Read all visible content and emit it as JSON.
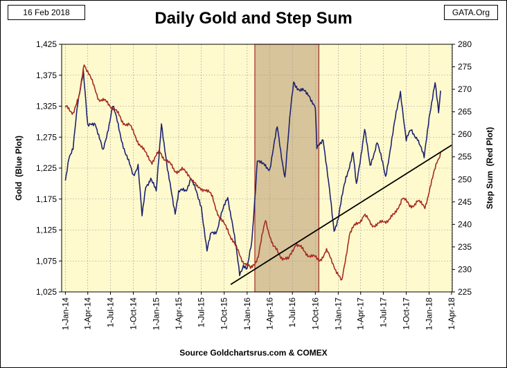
{
  "header": {
    "date": "16 Feb 2018",
    "brand": "GATA.Org"
  },
  "footer": {
    "source": "Source Goldchartsrus.com & COMEX"
  },
  "colors": {
    "plot_background": "#FFFACD",
    "highlight": "#D8C49A",
    "highlight_border": "#9E2A2A",
    "gold_line": "#1B2270",
    "step_line": "#A52A20",
    "trend_line": "#000000",
    "grid": "#999999"
  },
  "chart_data": {
    "type": "line",
    "title": "Daily Gold and Step Sum",
    "ylabel": "Gold  (Blue Plot)",
    "y2label": "Step Sum  (Red Plot)",
    "xlabel": "",
    "ylim": [
      1025,
      1425
    ],
    "y2lim": [
      225,
      280
    ],
    "yticks": [
      "1,025",
      "1,075",
      "1,125",
      "1,175",
      "1,225",
      "1,275",
      "1,325",
      "1,375",
      "1,425"
    ],
    "y2ticks": [
      "225",
      "230",
      "235",
      "240",
      "245",
      "250",
      "255",
      "260",
      "265",
      "270",
      "275",
      "280"
    ],
    "xticks": [
      "1-Jan-14",
      "1-Apr-14",
      "1-Jul-14",
      "1-Oct-14",
      "1-Jan-15",
      "1-Apr-15",
      "1-Jul-15",
      "1-Oct-15",
      "1-Jan-16",
      "1-Apr-16",
      "1-Jul-16",
      "1-Oct-16",
      "1-Jan-17",
      "1-Apr-17",
      "1-Jul-17",
      "1-Oct-17",
      "1-Jan-18",
      "1-Apr-18"
    ],
    "grid": true,
    "highlight_range": [
      "2016-02-01",
      "2016-10-15"
    ],
    "series": [
      {
        "name": "Gold",
        "axis": "left",
        "x": [
          "2014-01-01",
          "2014-01-15",
          "2014-02-01",
          "2014-02-20",
          "2014-03-14",
          "2014-04-01",
          "2014-05-01",
          "2014-06-01",
          "2014-07-10",
          "2014-08-01",
          "2014-09-01",
          "2014-10-01",
          "2014-10-20",
          "2014-11-05",
          "2014-11-20",
          "2014-12-10",
          "2015-01-01",
          "2015-01-22",
          "2015-02-15",
          "2015-03-18",
          "2015-04-01",
          "2015-05-01",
          "2015-05-20",
          "2015-06-15",
          "2015-07-01",
          "2015-07-24",
          "2015-08-10",
          "2015-09-01",
          "2015-10-15",
          "2015-11-01",
          "2015-12-02",
          "2015-12-17",
          "2016-01-01",
          "2016-01-20",
          "2016-02-11",
          "2016-03-01",
          "2016-04-01",
          "2016-05-01",
          "2016-06-01",
          "2016-06-24",
          "2016-07-06",
          "2016-08-01",
          "2016-09-06",
          "2016-10-01",
          "2016-10-07",
          "2016-11-01",
          "2016-12-15",
          "2017-01-01",
          "2017-02-01",
          "2017-03-01",
          "2017-03-15",
          "2017-04-17",
          "2017-05-09",
          "2017-06-06",
          "2017-07-10",
          "2017-08-01",
          "2017-09-08",
          "2017-10-01",
          "2017-10-20",
          "2017-11-15",
          "2017-12-12",
          "2018-01-01",
          "2018-01-25",
          "2018-02-08",
          "2018-02-16"
        ],
        "y": [
          1205,
          1245,
          1255,
          1330,
          1385,
          1290,
          1300,
          1250,
          1325,
          1295,
          1245,
          1215,
          1230,
          1145,
          1195,
          1210,
          1185,
          1300,
          1220,
          1155,
          1185,
          1190,
          1210,
          1180,
          1165,
          1090,
          1120,
          1125,
          1180,
          1140,
          1055,
          1070,
          1060,
          1105,
          1240,
          1230,
          1225,
          1290,
          1210,
          1320,
          1365,
          1350,
          1345,
          1320,
          1255,
          1275,
          1125,
          1145,
          1210,
          1250,
          1195,
          1290,
          1225,
          1270,
          1210,
          1265,
          1350,
          1270,
          1285,
          1275,
          1240,
          1310,
          1360,
          1315,
          1350
        ]
      },
      {
        "name": "Step Sum",
        "axis": "right",
        "x": [
          "2014-01-01",
          "2014-02-01",
          "2014-02-25",
          "2014-03-17",
          "2014-04-15",
          "2014-05-15",
          "2014-06-15",
          "2014-07-15",
          "2014-08-15",
          "2014-09-15",
          "2014-10-15",
          "2014-11-15",
          "2014-12-15",
          "2015-01-15",
          "2015-02-15",
          "2015-03-15",
          "2015-04-15",
          "2015-05-15",
          "2015-06-15",
          "2015-07-15",
          "2015-08-15",
          "2015-09-15",
          "2015-10-15",
          "2015-11-15",
          "2015-12-15",
          "2016-01-15",
          "2016-02-15",
          "2016-03-15",
          "2016-04-15",
          "2016-05-15",
          "2016-06-15",
          "2016-07-15",
          "2016-08-15",
          "2016-09-15",
          "2016-10-15",
          "2016-11-15",
          "2016-12-15",
          "2017-01-15",
          "2017-02-15",
          "2017-03-15",
          "2017-04-15",
          "2017-05-15",
          "2017-06-15",
          "2017-07-15",
          "2017-08-15",
          "2017-09-15",
          "2017-10-15",
          "2017-11-15",
          "2017-12-15",
          "2018-01-15",
          "2018-02-01",
          "2018-02-16"
        ],
        "y": [
          266,
          265,
          268,
          276,
          272,
          268,
          267,
          266,
          263,
          262,
          259,
          256,
          254,
          256,
          254,
          252,
          252,
          251,
          248,
          248,
          246,
          241,
          239,
          235,
          232,
          230,
          233,
          241,
          235,
          233,
          232,
          236,
          234,
          233,
          232,
          234,
          231,
          227,
          238,
          240,
          242,
          240,
          240,
          241,
          242,
          246,
          244,
          245,
          244,
          250,
          254,
          256
        ]
      },
      {
        "name": "",
        "axis": "left",
        "kind": "trendline",
        "x": [
          "2015-10-27",
          "2018-04-01"
        ],
        "y": [
          1037,
          1262
        ]
      }
    ]
  }
}
